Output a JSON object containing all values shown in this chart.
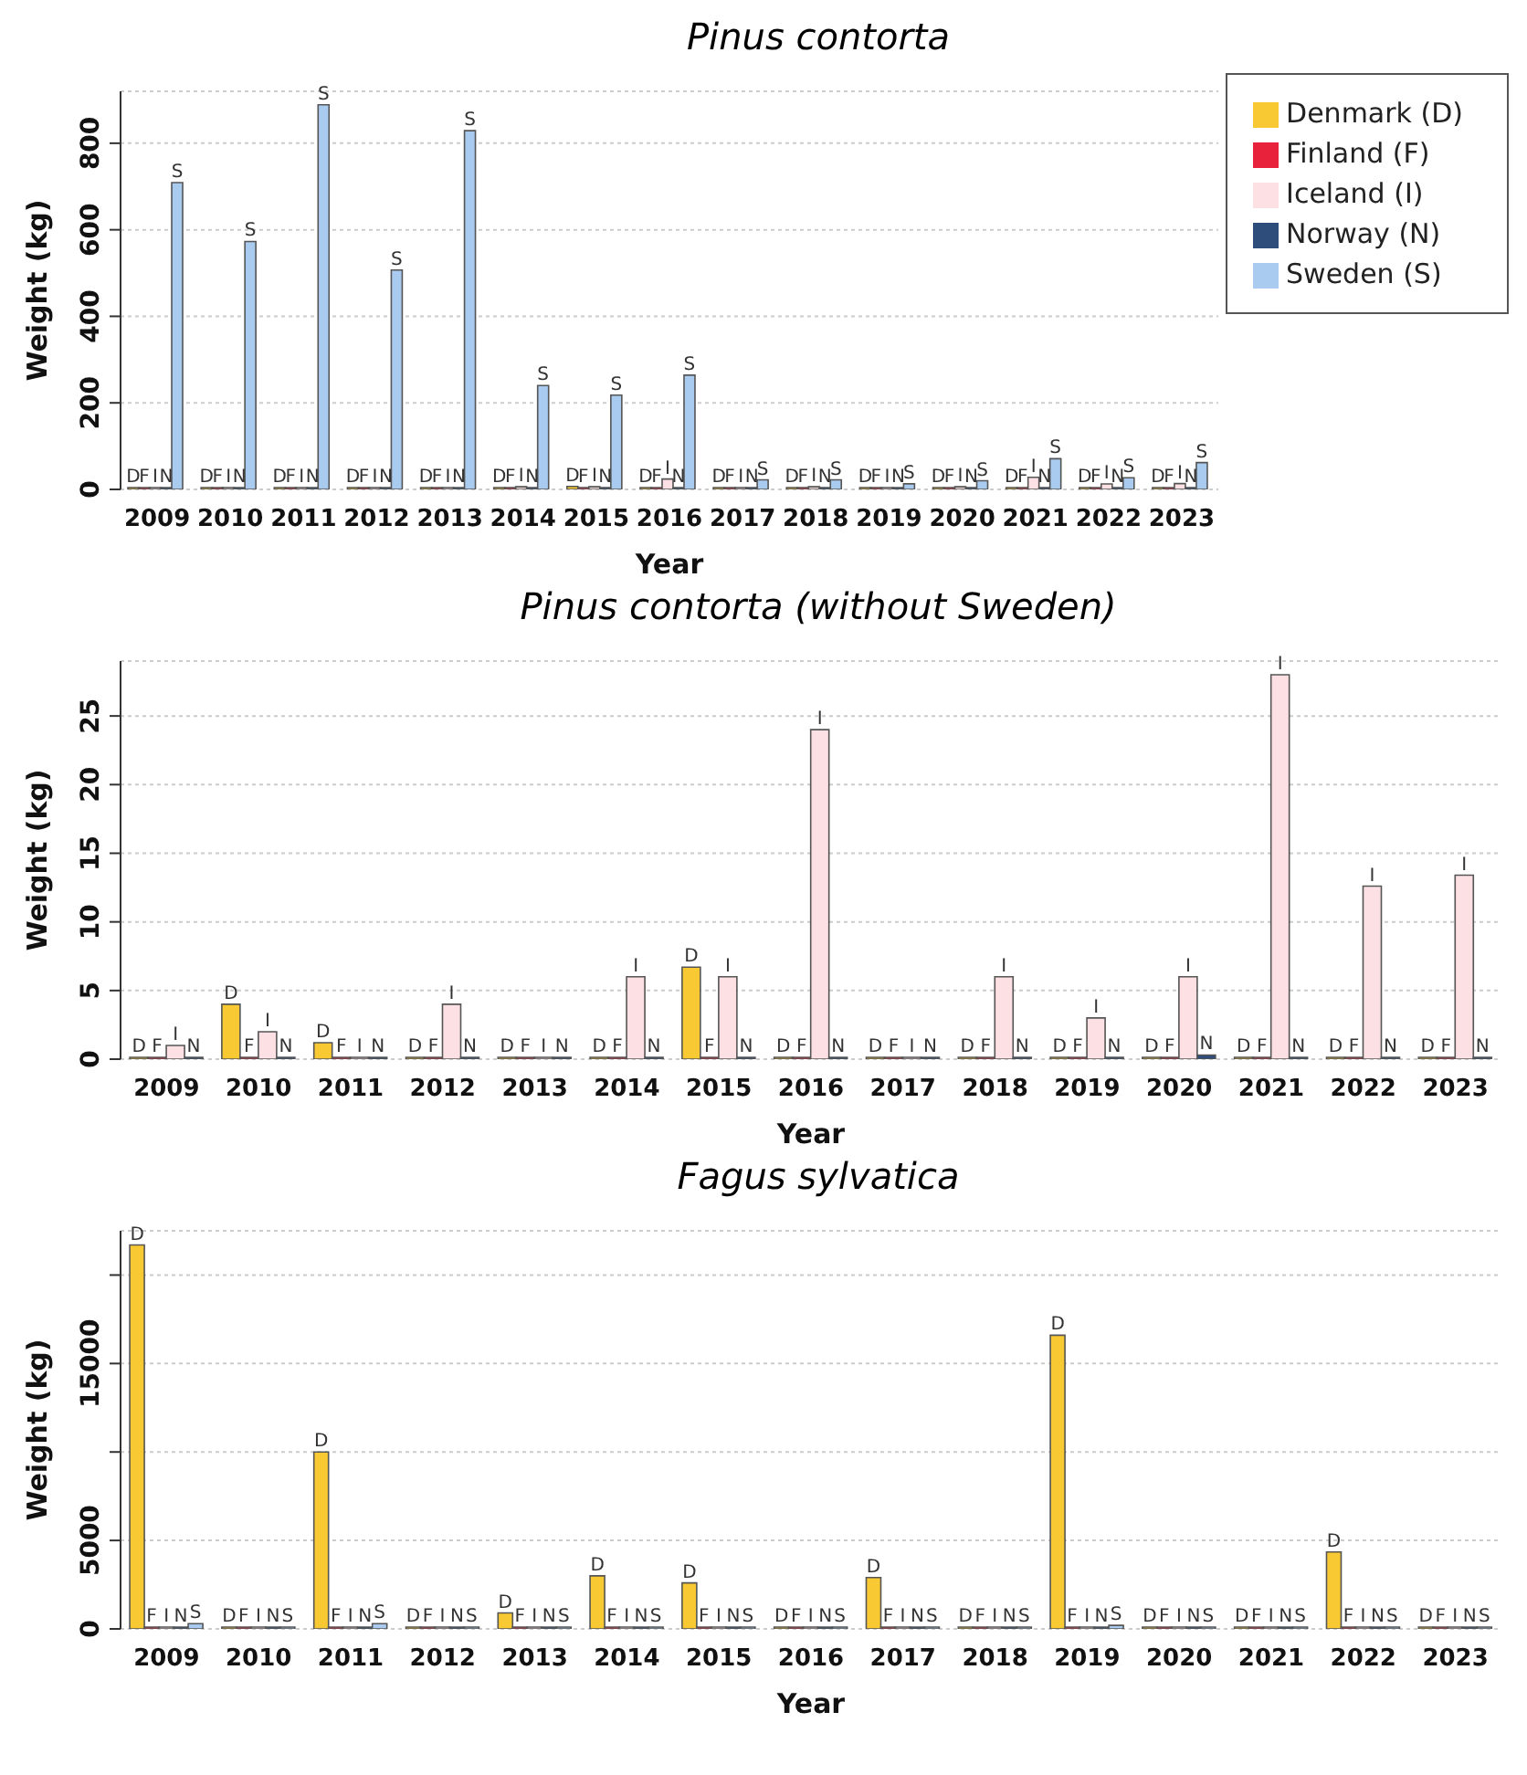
{
  "chart_data": [
    {
      "type": "bar",
      "title": "Pinus contorta",
      "xlabel": "Year",
      "ylabel": "Weight (kg)",
      "categories": [
        "2009",
        "2010",
        "2011",
        "2012",
        "2013",
        "2014",
        "2015",
        "2016",
        "2017",
        "2018",
        "2019",
        "2020",
        "2021",
        "2022",
        "2023"
      ],
      "series": [
        {
          "name": "Denmark (D)",
          "color": "#f9c933",
          "values": [
            0,
            4,
            1.2,
            0,
            0,
            0,
            6.7,
            0,
            0,
            0,
            0,
            0,
            0,
            0,
            0
          ],
          "value_labels": [
            "D",
            "D",
            "D",
            "D",
            "D",
            "D",
            "D",
            "D",
            "D",
            "D",
            "D",
            "D",
            "D",
            "D",
            "D"
          ]
        },
        {
          "name": "Finland (F)",
          "color": "#e8223a",
          "values": [
            0,
            0,
            0,
            0,
            0,
            0,
            0,
            0,
            0,
            0,
            0,
            0,
            0,
            0,
            0
          ],
          "value_labels": [
            "F",
            "F",
            "F",
            "F",
            "F",
            "F",
            "F",
            "F",
            "F",
            "F",
            "F",
            "F",
            "F",
            "F",
            "F"
          ]
        },
        {
          "name": "Iceland (I)",
          "color": "#fde0e3",
          "values": [
            1,
            2,
            0,
            4,
            0,
            6,
            6,
            24,
            0,
            6,
            3,
            6,
            28,
            12.6,
            13.4
          ],
          "value_labels": [
            "I",
            "I",
            "I",
            "I",
            "I",
            "I",
            "I",
            "I",
            "I",
            "I",
            "I",
            "I",
            "I",
            "I",
            "I"
          ]
        },
        {
          "name": "Norway (N)",
          "color": "#2e4d7b",
          "values": [
            0,
            0,
            0,
            0,
            0,
            0,
            0,
            0,
            0,
            0,
            0,
            0.3,
            0,
            0,
            0
          ],
          "value_labels": [
            "N",
            "N",
            "N",
            "N",
            "N",
            "N",
            "N",
            "N",
            "N",
            "N",
            "N",
            "N",
            "N",
            "N",
            "N"
          ]
        },
        {
          "name": "Sweden (S)",
          "color": "#a9cbf0",
          "values": [
            709,
            573,
            889,
            507,
            829,
            240,
            218,
            264,
            22,
            22,
            13,
            20,
            71,
            27,
            62
          ],
          "value_labels": [
            "S",
            "S",
            "S",
            "S",
            "S",
            "S",
            "S",
            "S",
            "S",
            "S",
            "S",
            "S",
            "S",
            "S",
            "S"
          ]
        }
      ],
      "ylim": [
        0,
        920
      ],
      "yticks": [
        0,
        200,
        400,
        600,
        800
      ],
      "grid": "y",
      "legend": "top right"
    },
    {
      "type": "bar",
      "title": "Pinus contorta (without Sweden)",
      "xlabel": "Year",
      "ylabel": "Weight (kg)",
      "categories": [
        "2009",
        "2010",
        "2011",
        "2012",
        "2013",
        "2014",
        "2015",
        "2016",
        "2017",
        "2018",
        "2019",
        "2020",
        "2021",
        "2022",
        "2023"
      ],
      "series": [
        {
          "color": "#f9c933",
          "values": [
            0,
            4,
            1.2,
            0,
            0,
            0,
            6.7,
            0,
            0,
            0,
            0,
            0,
            0,
            0,
            0
          ],
          "value_labels": [
            "D",
            "D",
            "D",
            "D",
            "D",
            "D",
            "D",
            "D",
            "D",
            "D",
            "D",
            "D",
            "D",
            "D",
            "D"
          ]
        },
        {
          "color": "#e8223a",
          "values": [
            0,
            0,
            0,
            0,
            0,
            0,
            0,
            0,
            0,
            0,
            0,
            0,
            0,
            0,
            0
          ],
          "value_labels": [
            "F",
            "F",
            "F",
            "F",
            "F",
            "F",
            "F",
            "F",
            "F",
            "F",
            "F",
            "F",
            "F",
            "F",
            "F"
          ]
        },
        {
          "color": "#fde0e3",
          "values": [
            1,
            2,
            0,
            4,
            0,
            6,
            6,
            24,
            0,
            6,
            3,
            6,
            28,
            12.6,
            13.4
          ],
          "value_labels": [
            "I",
            "I",
            "I",
            "I",
            "I",
            "I",
            "I",
            "I",
            "I",
            "I",
            "I",
            "I",
            "I",
            "I",
            "I"
          ]
        },
        {
          "color": "#2e4d7b",
          "values": [
            0,
            0,
            0,
            0,
            0,
            0,
            0,
            0,
            0,
            0,
            0,
            0.3,
            0,
            0,
            0
          ],
          "value_labels": [
            "N",
            "N",
            "N",
            "N",
            "N",
            "N",
            "N",
            "N",
            "N",
            "N",
            "N",
            "N",
            "N",
            "N",
            "N"
          ]
        }
      ],
      "ylim": [
        0,
        29
      ],
      "yticks": [
        0,
        5,
        10,
        15,
        20,
        25
      ],
      "grid": "y"
    },
    {
      "type": "bar",
      "title": "Fagus sylvatica",
      "xlabel": "Year",
      "ylabel": "Weight (kg)",
      "categories": [
        "2009",
        "2010",
        "2011",
        "2012",
        "2013",
        "2014",
        "2015",
        "2016",
        "2017",
        "2018",
        "2019",
        "2020",
        "2021",
        "2022",
        "2023"
      ],
      "series": [
        {
          "color": "#f9c933",
          "values": [
            21700,
            0,
            10000,
            0,
            900,
            3000,
            2600,
            0,
            2900,
            0,
            16600,
            0,
            0,
            4350,
            0
          ],
          "value_labels": [
            "D",
            "D",
            "D",
            "D",
            "D",
            "D",
            "D",
            "D",
            "D",
            "D",
            "D",
            "D",
            "D",
            "D",
            "D"
          ]
        },
        {
          "color": "#e8223a",
          "values": [
            0,
            0,
            0,
            0,
            0,
            0,
            0,
            0,
            0,
            0,
            0,
            0,
            0,
            0,
            0
          ],
          "value_labels": [
            "F",
            "F",
            "F",
            "F",
            "F",
            "F",
            "F",
            "F",
            "F",
            "F",
            "F",
            "F",
            "F",
            "F",
            "F"
          ]
        },
        {
          "color": "#fde0e3",
          "values": [
            0,
            0,
            0,
            0,
            0,
            0,
            0,
            0,
            0,
            0,
            0,
            0,
            0,
            0,
            0
          ],
          "value_labels": [
            "I",
            "I",
            "I",
            "I",
            "I",
            "I",
            "I",
            "I",
            "I",
            "I",
            "I",
            "I",
            "I",
            "I",
            "I"
          ]
        },
        {
          "color": "#2e4d7b",
          "values": [
            0,
            0,
            0,
            0,
            0,
            0,
            0,
            0,
            0,
            0,
            0,
            0,
            0,
            0,
            0
          ],
          "value_labels": [
            "N",
            "N",
            "N",
            "N",
            "N",
            "N",
            "N",
            "N",
            "N",
            "N",
            "N",
            "N",
            "N",
            "N",
            "N"
          ]
        },
        {
          "color": "#a9cbf0",
          "values": [
            300,
            0,
            300,
            0,
            0,
            0,
            0,
            0,
            0,
            0,
            200,
            0,
            0,
            0,
            0
          ],
          "value_labels": [
            "S",
            "S",
            "S",
            "S",
            "S",
            "S",
            "S",
            "S",
            "S",
            "S",
            "S",
            "S",
            "S",
            "S",
            "S"
          ]
        }
      ],
      "ylim": [
        0,
        22500
      ],
      "yticks": [
        0,
        5000,
        {
          "value": 10000,
          "label": null
        },
        15000,
        {
          "value": 20000,
          "label": null
        }
      ],
      "grid": "y"
    }
  ]
}
